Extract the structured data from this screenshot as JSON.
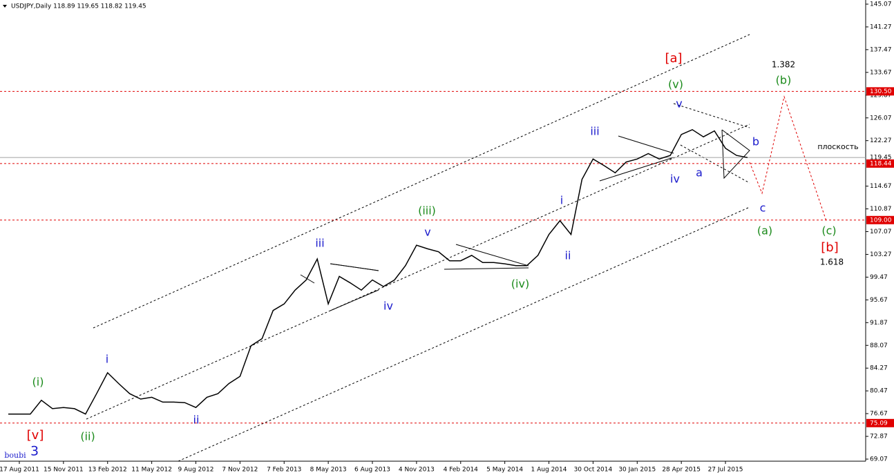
{
  "chart_data": {
    "type": "line",
    "title": "USDJPY,Daily  118.89 119.65 118.82 119.45",
    "categories": [
      null,
      "17 Aug 2011",
      null,
      null,
      null,
      "15 Nov 2011",
      null,
      null,
      null,
      "13 Feb 2012",
      null,
      null,
      null,
      "11 May 2012",
      null,
      null,
      null,
      "9 Aug 2012",
      null,
      null,
      null,
      "7 Nov 2012",
      null,
      null,
      null,
      "7 Feb 2013",
      null,
      null,
      null,
      "8 May 2013",
      null,
      null,
      null,
      "6 Aug 2013",
      null,
      null,
      null,
      "4 Nov 2013",
      null,
      null,
      null,
      "4 Feb 2014",
      null,
      null,
      null,
      "5 May 2014",
      null,
      null,
      null,
      "1 Aug 2014",
      null,
      null,
      null,
      "30 Oct 2014",
      null,
      null,
      null,
      "30 Jan 2015",
      null,
      null,
      null,
      "28 Apr 2015",
      null,
      null,
      null,
      "27 Jul 2015",
      null,
      null
    ],
    "series": [
      {
        "name": "USDJPY",
        "color": "#000000",
        "values": [
          76.6,
          76.6,
          76.6,
          78.9,
          77.5,
          77.7,
          77.5,
          76.6,
          80.0,
          83.5,
          81.7,
          80.0,
          79.1,
          79.4,
          78.6,
          78.6,
          78.5,
          77.7,
          79.4,
          80.0,
          81.7,
          82.9,
          88.0,
          89.2,
          93.9,
          95.0,
          97.3,
          99.0,
          102.5,
          95.0,
          99.6,
          98.5,
          97.3,
          99.0,
          97.9,
          99.0,
          101.4,
          104.8,
          104.2,
          103.7,
          102.2,
          102.2,
          103.1,
          101.9,
          101.9,
          101.7,
          101.4,
          101.4,
          103.1,
          106.6,
          108.9,
          106.6,
          115.8,
          119.2,
          118.1,
          116.9,
          118.7,
          119.2,
          120.1,
          119.2,
          119.8,
          123.3,
          124.1,
          122.9,
          123.9,
          121.0,
          119.8,
          119.45
        ]
      }
    ],
    "ylim": [
      69.07,
      145.07
    ],
    "yticks": [
      145.07,
      141.27,
      137.47,
      133.67,
      129.87,
      126.07,
      122.27,
      114.67,
      110.87,
      107.07,
      103.27,
      99.47,
      95.67,
      91.87,
      88.07,
      84.27,
      80.47,
      76.67,
      72.87,
      69.07
    ],
    "hlines": [
      {
        "value": 130.5,
        "label": "130.50",
        "color": "#e00000"
      },
      {
        "value": 119.45,
        "label": "119.45",
        "color": "#a0a0a0"
      },
      {
        "value": 118.44,
        "label": "118.44",
        "color": "#e00000"
      },
      {
        "value": 109,
        "label": "109.00",
        "color": "#e00000"
      },
      {
        "value": 75.09,
        "label": "75.09",
        "color": "#e00000"
      }
    ],
    "annotations": [
      "[a]",
      "1.382",
      "(b)",
      "(v)",
      "v",
      "iii",
      "b",
      "плоскость",
      "a",
      "iv",
      "c",
      "i",
      "(iii)",
      "v",
      "(a)",
      "(c)",
      "[b]",
      "1.618",
      "iii",
      "ii",
      "(iv)",
      "iv",
      "i",
      "(i)",
      "ii",
      "[v]",
      "(ii)",
      "boubi",
      "3"
    ]
  }
}
